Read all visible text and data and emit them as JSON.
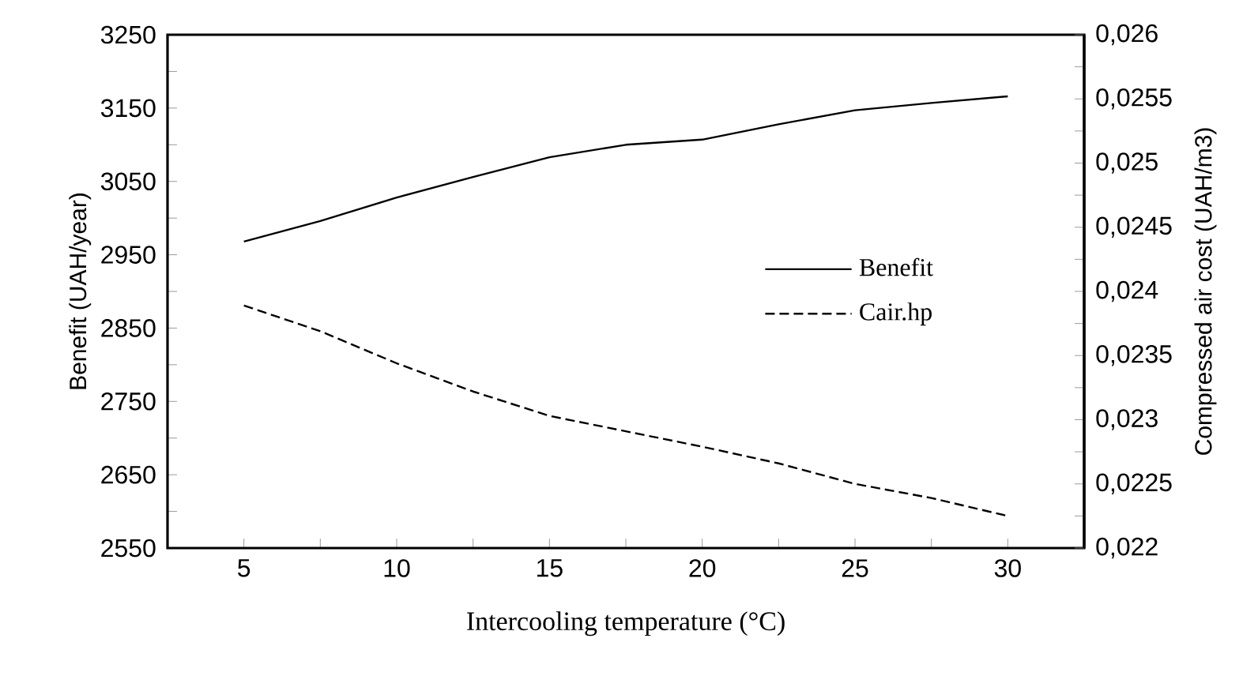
{
  "chart_data": {
    "type": "line",
    "xlabel": "Intercooling temperature (°C)",
    "ylabel": "Benefit (UAH/year)",
    "y2label": "Compressed air cost (UAH/m3)",
    "x": [
      5,
      7.5,
      10,
      12.5,
      15,
      17.5,
      20,
      22.5,
      25,
      27.5,
      30
    ],
    "series": [
      {
        "name": "Benefit",
        "color": "#000000",
        "line_style": "solid",
        "values": [
          2968,
          2996,
          3028,
          3056,
          3083,
          3100,
          3107,
          3128,
          3147,
          3157,
          3166
        ]
      },
      {
        "name": "Cair.hp",
        "color": "#000000",
        "line_style": "dashed",
        "axis": "y2",
        "values": [
          0.02389,
          0.02369,
          0.02344,
          0.02322,
          0.02303,
          0.02291,
          0.02279,
          0.02266,
          0.0225,
          0.02239,
          0.02225
        ]
      }
    ],
    "xlim": [
      2.5,
      32.5
    ],
    "xticks": [
      5,
      {
        "value": 7.5,
        "label": null
      },
      10,
      {
        "value": 12.5,
        "label": null
      },
      15,
      {
        "value": 17.5,
        "label": null
      },
      20,
      {
        "value": 22.5,
        "label": null
      },
      25,
      {
        "value": 27.5,
        "label": null
      },
      30
    ],
    "ylim": [
      2550,
      3250
    ],
    "yticks": [
      2550,
      {
        "value": 2600,
        "label": null
      },
      2650,
      {
        "value": 2700,
        "label": null
      },
      2750,
      {
        "value": 2800,
        "label": null
      },
      2850,
      {
        "value": 2900,
        "label": null
      },
      2950,
      {
        "value": 3000,
        "label": null
      },
      3050,
      {
        "value": 3100,
        "label": null
      },
      3150,
      {
        "value": 3200,
        "label": null
      },
      3250
    ],
    "y2lim": [
      0.022,
      0.026
    ],
    "y2ticks": [
      {
        "value": 0.022,
        "label": "0,022"
      },
      {
        "value": 0.02225,
        "label": null
      },
      {
        "value": 0.0225,
        "label": "0,0225"
      },
      {
        "value": 0.02275,
        "label": null
      },
      {
        "value": 0.023,
        "label": "0,023"
      },
      {
        "value": 0.02325,
        "label": null
      },
      {
        "value": 0.0235,
        "label": "0,0235"
      },
      {
        "value": 0.02375,
        "label": null
      },
      {
        "value": 0.024,
        "label": "0,024"
      },
      {
        "value": 0.02425,
        "label": null
      },
      {
        "value": 0.0245,
        "label": "0,0245"
      },
      {
        "value": 0.02475,
        "label": null
      },
      {
        "value": 0.025,
        "label": "0,025"
      },
      {
        "value": 0.02525,
        "label": null
      },
      {
        "value": 0.0255,
        "label": "0,0255"
      },
      {
        "value": 0.02575,
        "label": null
      },
      {
        "value": 0.026,
        "label": "0,026"
      }
    ],
    "legend": "right",
    "grid": false
  }
}
